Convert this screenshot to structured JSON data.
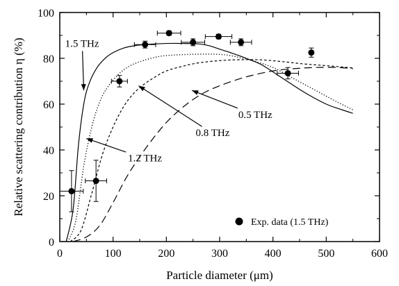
{
  "chart_data": {
    "type": "line",
    "xlabel": "Particle diameter (μm)",
    "ylabel": "Relative scattering contribution η (%)",
    "xlim": [
      0,
      600
    ],
    "ylim": [
      0,
      100
    ],
    "x_ticks": [
      "0",
      "100",
      "200",
      "300",
      "400",
      "500",
      "600"
    ],
    "y_ticks": [
      "0",
      "20",
      "40",
      "60",
      "80",
      "100"
    ],
    "grid": false,
    "series": [
      {
        "name": "1.5 THz",
        "style": "solid",
        "x": [
          12,
          25,
          35,
          45,
          55,
          70,
          85,
          100,
          120,
          140,
          160,
          180,
          200,
          230,
          260,
          280,
          300,
          320,
          350,
          380,
          420,
          460,
          500,
          530,
          550
        ],
        "y": [
          0,
          14,
          42,
          60,
          69,
          76,
          80,
          82.5,
          84.5,
          85.5,
          86,
          86.3,
          86.5,
          86.5,
          86.3,
          85.5,
          84,
          82.5,
          80,
          77,
          71,
          65,
          60,
          57.5,
          56
        ]
      },
      {
        "name": "1.2 THz",
        "style": "dotted",
        "x": [
          15,
          30,
          45,
          60,
          75,
          90,
          110,
          130,
          150,
          180,
          200,
          230,
          260,
          290,
          320,
          360,
          400,
          440,
          480,
          520,
          550
        ],
        "y": [
          0,
          9,
          33,
          50,
          61,
          67.5,
          73,
          76.5,
          78.5,
          80.5,
          81.2,
          81.6,
          81.8,
          81.8,
          81.2,
          79,
          76,
          71,
          66,
          61,
          57.5
        ]
      },
      {
        "name": "0.8 THz",
        "style": "dashed",
        "x": [
          20,
          40,
          60,
          80,
          100,
          120,
          140,
          160,
          180,
          200,
          230,
          260,
          300,
          340,
          380,
          420,
          460,
          500,
          550
        ],
        "y": [
          0,
          5,
          21,
          38,
          50,
          59,
          65,
          69,
          72,
          74.5,
          76.5,
          78,
          79,
          79.4,
          79.3,
          78.5,
          77.5,
          76.8,
          75.8
        ]
      },
      {
        "name": "0.5 THz",
        "style": "long-dash",
        "x": [
          25,
          50,
          75,
          100,
          125,
          150,
          175,
          200,
          225,
          250,
          275,
          300,
          330,
          360,
          400,
          440,
          480,
          520,
          550
        ],
        "y": [
          0,
          2,
          7,
          17,
          28,
          37,
          45,
          52,
          57.5,
          62,
          65.5,
          68,
          70.5,
          72.5,
          74.5,
          75.5,
          76,
          76,
          75.5
        ]
      }
    ],
    "experimental": {
      "name": "Exp. data (1.5 THz)",
      "x": [
        22,
        68,
        112,
        160,
        205,
        250,
        298,
        340,
        428,
        472
      ],
      "y": [
        22,
        26.5,
        70,
        86,
        91,
        87,
        89.5,
        87,
        73.5,
        82.5
      ],
      "xerr": [
        22,
        20,
        15,
        20,
        22,
        22,
        25,
        20,
        20,
        0
      ],
      "yerr": [
        9,
        9,
        2.5,
        1.5,
        1,
        1.5,
        1,
        1.5,
        2.5,
        2
      ]
    },
    "annotations": [
      {
        "text": "1.5 THz",
        "series": "1.5 THz",
        "text_x": 10,
        "text_y": 85,
        "arrow_x": 45,
        "arrow_y": 66
      },
      {
        "text": "1.2 THz",
        "series": "1.2 THz",
        "text_x": 128,
        "text_y": 35,
        "arrow_x": 50,
        "arrow_y": 45
      },
      {
        "text": "0.8 THz",
        "series": "0.8 THz",
        "text_x": 255,
        "text_y": 46,
        "arrow_x": 148,
        "arrow_y": 68
      },
      {
        "text": "0.5 THz",
        "series": "0.5 THz",
        "text_x": 335,
        "text_y": 54,
        "arrow_x": 248,
        "arrow_y": 66
      }
    ],
    "legend": {
      "placement": "bottom-right",
      "label": "Exp. data (1.5 THz)"
    }
  }
}
